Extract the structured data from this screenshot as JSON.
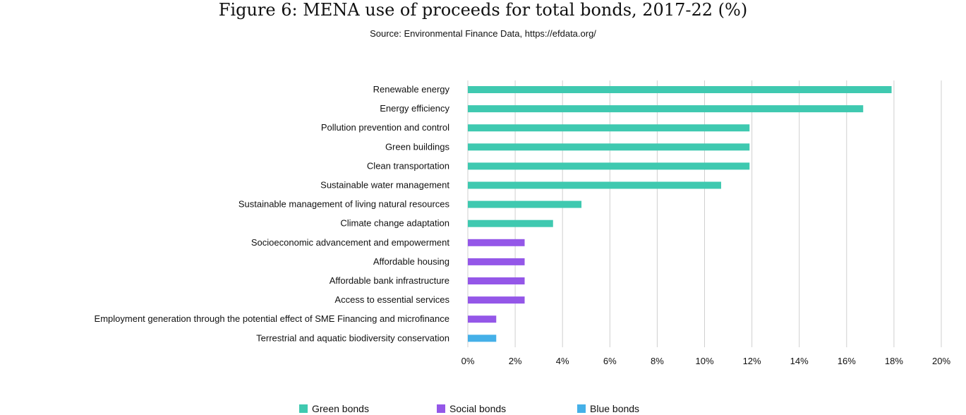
{
  "chart_data": {
    "type": "bar",
    "orientation": "horizontal",
    "title": "Figure 6: MENA use of proceeds for total bonds, 2017-22 (%)",
    "subtitle": "Source: Environmental Finance Data, https://efdata.org/",
    "xlabel": "",
    "ylabel": "",
    "xlim": [
      0,
      20
    ],
    "ticks": [
      "0%",
      "2%",
      "4%",
      "6%",
      "8%",
      "10%",
      "12%",
      "14%",
      "16%",
      "18%",
      "20%"
    ],
    "grid": true,
    "legend_position": "bottom",
    "categories": [
      "Renewable energy",
      "Energy efficiency",
      "Pollution prevention and control",
      "Green buildings",
      "Clean transportation",
      "Sustainable water management",
      "Sustainable management of living natural resources",
      "Climate change adaptation",
      "Socioeconomic advancement and empowerment",
      "Affordable housing",
      "Affordable bank infrastructure",
      "Access to essential services",
      "Employment generation through the potential effect of SME Financing and microfinance",
      "Terrestrial and aquatic biodiversity conservation"
    ],
    "values": [
      17.9,
      16.7,
      11.9,
      11.9,
      11.9,
      10.7,
      4.8,
      3.6,
      2.4,
      2.4,
      2.4,
      2.4,
      1.2,
      1.2
    ],
    "bar_series": [
      "Green bonds",
      "Green bonds",
      "Green bonds",
      "Green bonds",
      "Green bonds",
      "Green bonds",
      "Green bonds",
      "Green bonds",
      "Social bonds",
      "Social bonds",
      "Social bonds",
      "Social bonds",
      "Social bonds",
      "Blue bonds"
    ],
    "series": [
      {
        "name": "Green bonds",
        "color": "#3fc9b0"
      },
      {
        "name": "Social bonds",
        "color": "#9457e8"
      },
      {
        "name": "Blue bonds",
        "color": "#45b0e8"
      }
    ]
  }
}
